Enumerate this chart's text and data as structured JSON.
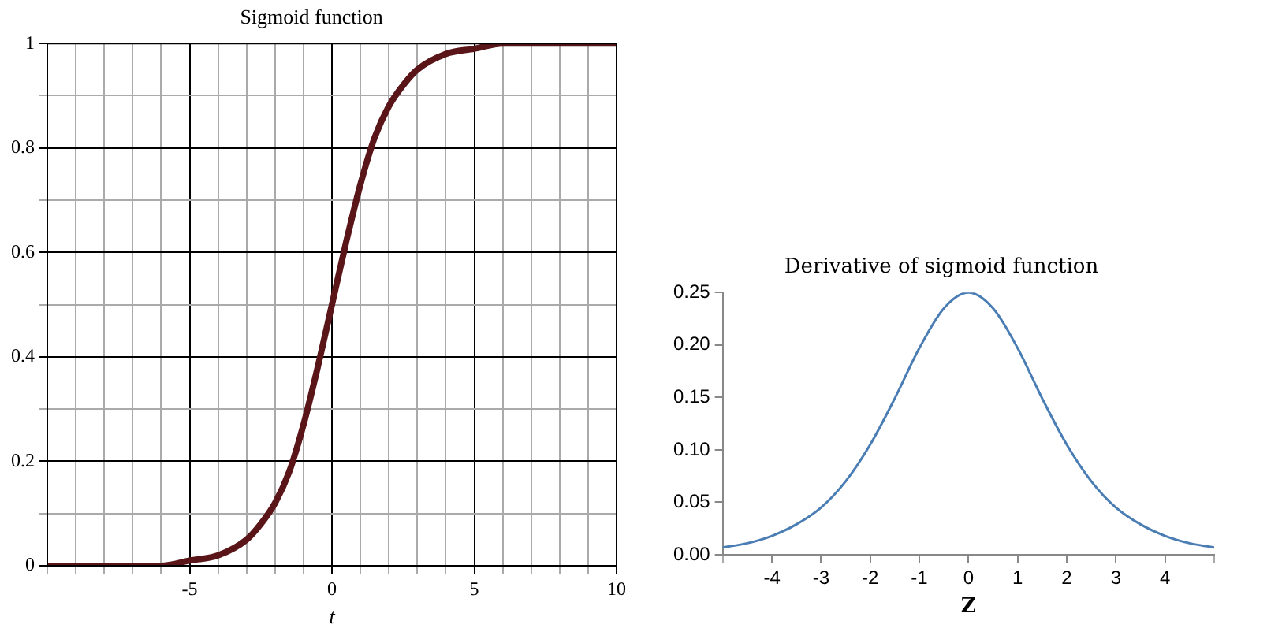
{
  "chart_data": [
    {
      "type": "line",
      "title": "Sigmoid function",
      "xlabel": "t",
      "x": [
        -10,
        -9,
        -8,
        -7,
        -6,
        -5,
        -4,
        -3,
        -2.5,
        -2,
        -1.5,
        -1,
        -0.5,
        0,
        0.5,
        1,
        1.5,
        2,
        2.5,
        3,
        4,
        5,
        6,
        7,
        8,
        9,
        10
      ],
      "series": [
        {
          "color": "#5a1518",
          "values": [
            0,
            0,
            0,
            0,
            0,
            0.01,
            0.02,
            0.05,
            0.08,
            0.12,
            0.18,
            0.27,
            0.38,
            0.5,
            0.62,
            0.73,
            0.82,
            0.88,
            0.92,
            0.95,
            0.98,
            0.99,
            1,
            1,
            1,
            1,
            1
          ]
        }
      ],
      "xlim": [
        -10,
        10
      ],
      "ylim": [
        0,
        1
      ],
      "xticks": [
        {
          "value": -10,
          "label": null
        },
        {
          "value": -9,
          "label": null
        },
        {
          "value": -8,
          "label": null
        },
        {
          "value": -7,
          "label": null
        },
        {
          "value": -6,
          "label": null
        },
        -5,
        {
          "value": -4,
          "label": null
        },
        {
          "value": -3,
          "label": null
        },
        {
          "value": -2,
          "label": null
        },
        {
          "value": -1,
          "label": null
        },
        0,
        {
          "value": 1,
          "label": null
        },
        {
          "value": 2,
          "label": null
        },
        {
          "value": 3,
          "label": null
        },
        {
          "value": 4,
          "label": null
        },
        5,
        {
          "value": 6,
          "label": null
        },
        {
          "value": 7,
          "label": null
        },
        {
          "value": 8,
          "label": null
        },
        {
          "value": 9,
          "label": null
        },
        10
      ],
      "yticks": [
        0,
        {
          "value": 0.1,
          "label": null
        },
        0.2,
        {
          "value": 0.3,
          "label": null
        },
        0.4,
        {
          "value": 0.5,
          "label": null
        },
        0.6,
        {
          "value": 0.7,
          "label": null
        },
        0.8,
        {
          "value": 0.9,
          "label": null
        },
        1
      ],
      "grid": true,
      "legend": false,
      "marker": "none",
      "line_style": "solid"
    },
    {
      "type": "line",
      "title": "Derivative of sigmoid function",
      "xlabel": "Z",
      "x": [
        -5,
        -4.5,
        -4,
        -3.5,
        -3,
        -2.5,
        -2,
        -1.5,
        -1,
        -0.5,
        0,
        0.5,
        1,
        1.5,
        2,
        2.5,
        3,
        3.5,
        4,
        4.5,
        5
      ],
      "series": [
        {
          "color": "#4a7db3",
          "values": [
            0.007,
            0.011,
            0.018,
            0.029,
            0.045,
            0.07,
            0.105,
            0.149,
            0.197,
            0.235,
            0.25,
            0.235,
            0.197,
            0.149,
            0.105,
            0.07,
            0.045,
            0.029,
            0.018,
            0.011,
            0.007
          ]
        }
      ],
      "xlim": [
        -5,
        5
      ],
      "ylim": [
        0,
        0.25
      ],
      "xticks": [
        {
          "value": -5,
          "label": null
        },
        -4,
        -3,
        -2,
        -1,
        0,
        1,
        2,
        3,
        4,
        {
          "value": 5,
          "label": null
        }
      ],
      "yticks": [
        {
          "value": 0,
          "label": "0.00"
        },
        0.05,
        {
          "value": 0.1,
          "label": "0.10"
        },
        0.15,
        {
          "value": 0.2,
          "label": "0.20"
        },
        0.25
      ],
      "grid": false,
      "legend": false,
      "marker": "none",
      "line_style": "solid"
    }
  ]
}
